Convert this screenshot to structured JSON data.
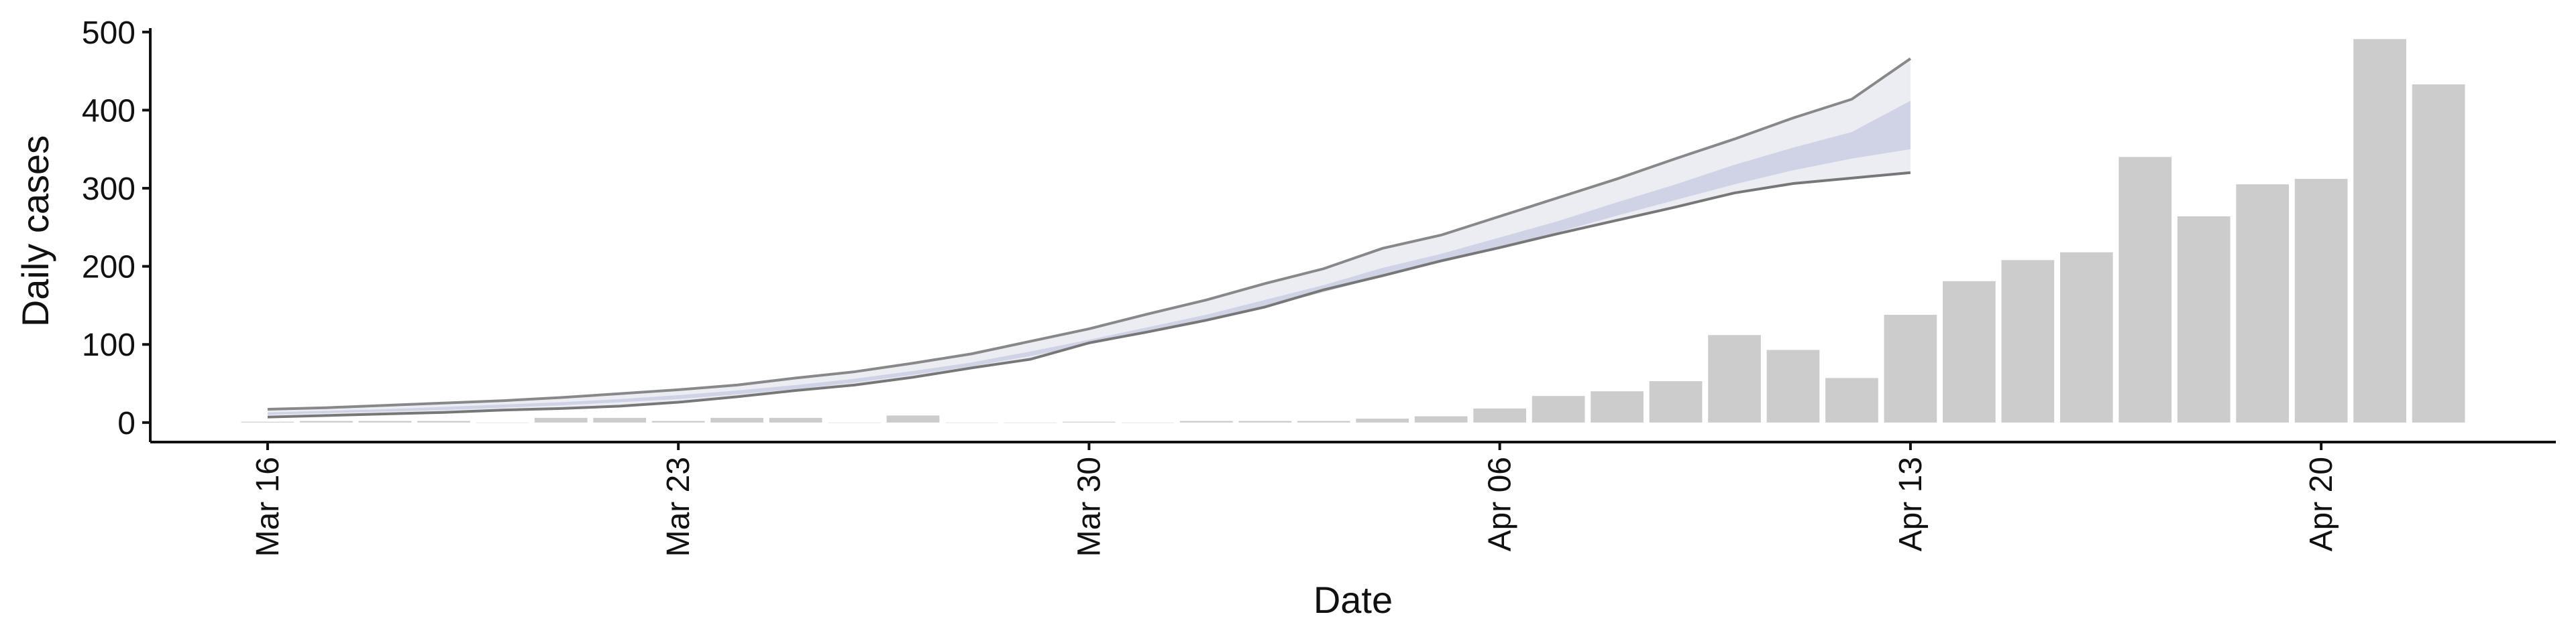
{
  "chart_data": {
    "type": "bar",
    "xlabel": "Date",
    "ylabel": "Daily cases",
    "ylim": [
      -25,
      505
    ],
    "y_ticks": [
      0,
      100,
      200,
      300,
      400,
      500
    ],
    "x_ticks": [
      {
        "label": "Mar 16",
        "day": 0
      },
      {
        "label": "Mar 23",
        "day": 7
      },
      {
        "label": "Mar 30",
        "day": 14
      },
      {
        "label": "Apr 06",
        "day": 21
      },
      {
        "label": "Apr 13",
        "day": 28
      },
      {
        "label": "Apr 20",
        "day": 35
      }
    ],
    "xlim_days": [
      -2,
      39
    ],
    "grid": false,
    "colors": {
      "bars": "#cccccc",
      "band_outer": "#ececf3",
      "band_inner": "#c6cbe0",
      "line_upper": "#888888",
      "line_lower": "#777777",
      "axis": "#111111"
    },
    "bars": {
      "dates": [
        "Mar 16",
        "Mar 17",
        "Mar 18",
        "Mar 19",
        "Mar 20",
        "Mar 21",
        "Mar 22",
        "Mar 23",
        "Mar 24",
        "Mar 25",
        "Mar 26",
        "Mar 27",
        "Mar 28",
        "Mar 29",
        "Mar 30",
        "Mar 31",
        "Apr 01",
        "Apr 02",
        "Apr 03",
        "Apr 04",
        "Apr 05",
        "Apr 06",
        "Apr 07",
        "Apr 08",
        "Apr 09",
        "Apr 10",
        "Apr 11",
        "Apr 12",
        "Apr 13",
        "Apr 14",
        "Apr 15",
        "Apr 16",
        "Apr 17",
        "Apr 18",
        "Apr 19",
        "Apr 20",
        "Apr 21",
        "Apr 22"
      ],
      "values": [
        1,
        2,
        2,
        2,
        0,
        6,
        6,
        2,
        6,
        6,
        0,
        9,
        0,
        0,
        1,
        0,
        2,
        2,
        2,
        5,
        8,
        18,
        34,
        40,
        53,
        112,
        93,
        57,
        138,
        181,
        208,
        218,
        340,
        264,
        305,
        312,
        491,
        433
      ]
    },
    "forecast": {
      "dates": [
        "Mar 16",
        "Mar 17",
        "Mar 18",
        "Mar 19",
        "Mar 20",
        "Mar 21",
        "Mar 22",
        "Mar 23",
        "Mar 24",
        "Mar 25",
        "Mar 26",
        "Mar 27",
        "Mar 28",
        "Mar 29",
        "Mar 30",
        "Mar 31",
        "Apr 01",
        "Apr 02",
        "Apr 03",
        "Apr 04",
        "Apr 05",
        "Apr 06",
        "Apr 07",
        "Apr 08",
        "Apr 09",
        "Apr 10",
        "Apr 11",
        "Apr 12",
        "Apr 13"
      ],
      "upper": [
        17,
        19,
        22,
        25,
        28,
        32,
        37,
        42,
        48,
        57,
        65,
        76,
        88,
        104,
        120,
        139,
        157,
        178,
        197,
        223,
        240,
        264,
        288,
        312,
        338,
        363,
        390,
        414,
        466
      ],
      "lower": [
        7,
        9,
        11,
        13,
        16,
        18,
        21,
        26,
        33,
        41,
        48,
        58,
        70,
        81,
        102,
        116,
        131,
        148,
        170,
        188,
        207,
        224,
        242,
        259,
        276,
        294,
        306,
        313,
        320
      ],
      "inner_upper": [
        13,
        15,
        17,
        20,
        23,
        26,
        30,
        35,
        41,
        48,
        56,
        66,
        77,
        91,
        106,
        122,
        138,
        157,
        176,
        198,
        216,
        237,
        258,
        282,
        305,
        330,
        352,
        372,
        412
      ],
      "inner_lower": [
        10,
        12,
        14,
        16,
        19,
        22,
        26,
        30,
        36,
        43,
        51,
        61,
        72,
        85,
        100,
        115,
        130,
        148,
        167,
        187,
        205,
        224,
        244,
        265,
        285,
        305,
        323,
        338,
        350
      ]
    }
  }
}
